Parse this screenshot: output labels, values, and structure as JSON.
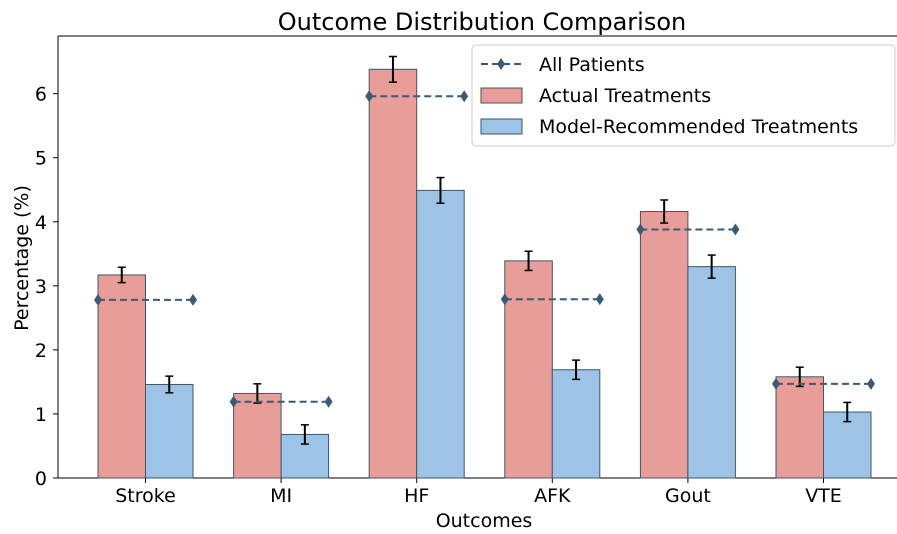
{
  "chart_data": {
    "type": "bar",
    "title": "Outcome Distribution Comparison",
    "xlabel": "Outcomes",
    "ylabel": "Percentage (%)",
    "ylim": [
      0,
      6.9
    ],
    "yticks": [
      0,
      1,
      2,
      3,
      4,
      5,
      6
    ],
    "categories": [
      "Stroke",
      "MI",
      "HF",
      "AFK",
      "Gout",
      "VTE"
    ],
    "series": [
      {
        "name": "Actual Treatments",
        "values": [
          3.17,
          1.32,
          6.38,
          3.39,
          4.16,
          1.58
        ],
        "errors": [
          0.12,
          0.15,
          0.2,
          0.15,
          0.18,
          0.15
        ],
        "color": "#e99d98"
      },
      {
        "name": "Model-Recommended Treatments",
        "values": [
          1.46,
          0.68,
          4.49,
          1.69,
          3.3,
          1.03
        ],
        "errors": [
          0.13,
          0.15,
          0.2,
          0.15,
          0.18,
          0.15
        ],
        "color": "#9dc3e6"
      }
    ],
    "reference": {
      "name": "All Patients",
      "values": [
        2.78,
        1.19,
        5.96,
        2.79,
        3.88,
        1.47
      ],
      "color": "#3b5a76"
    },
    "legend_position": "top-right",
    "grid": false
  }
}
